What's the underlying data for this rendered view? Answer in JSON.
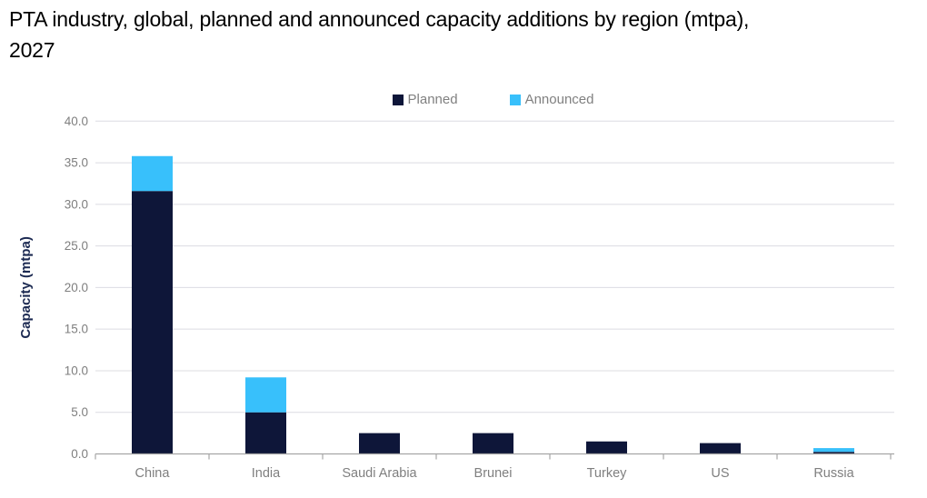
{
  "header": {
    "title_lines": [
      "PTA industry, global, planned and announced capacity additions by region (mtpa),",
      "2027"
    ]
  },
  "legend": {
    "items": [
      {
        "label": "Planned",
        "color": "#0e1639"
      },
      {
        "label": "Announced",
        "color": "#38c0fb"
      }
    ]
  },
  "chart_data": {
    "type": "bar",
    "stacked": true,
    "title": "PTA industry, global, planned and announced capacity additions by region (mtpa), 2027",
    "categories": [
      "China",
      "India",
      "Saudi Arabia",
      "Brunei",
      "Turkey",
      "US",
      "Russia"
    ],
    "series": [
      {
        "name": "Planned",
        "color": "#0e1639",
        "values": [
          31.6,
          5.0,
          2.5,
          2.5,
          1.5,
          1.3,
          0.25
        ]
      },
      {
        "name": "Announced",
        "color": "#38c0fb",
        "values": [
          4.2,
          4.2,
          0,
          0,
          0,
          0,
          0.45
        ]
      }
    ],
    "xlabel": "",
    "ylabel": "Capacity (mtpa)",
    "ylim": [
      0,
      40
    ],
    "ytick_step": 5,
    "ytick_decimals": 1,
    "grid": "horizontal",
    "legend_position": "top-center"
  },
  "colors": {
    "gridline": "#dcdce2",
    "axis": "#a6a6a6",
    "tick_label": "#7f7f7f",
    "axis_title": "#1c2a52",
    "title": "#000000"
  }
}
